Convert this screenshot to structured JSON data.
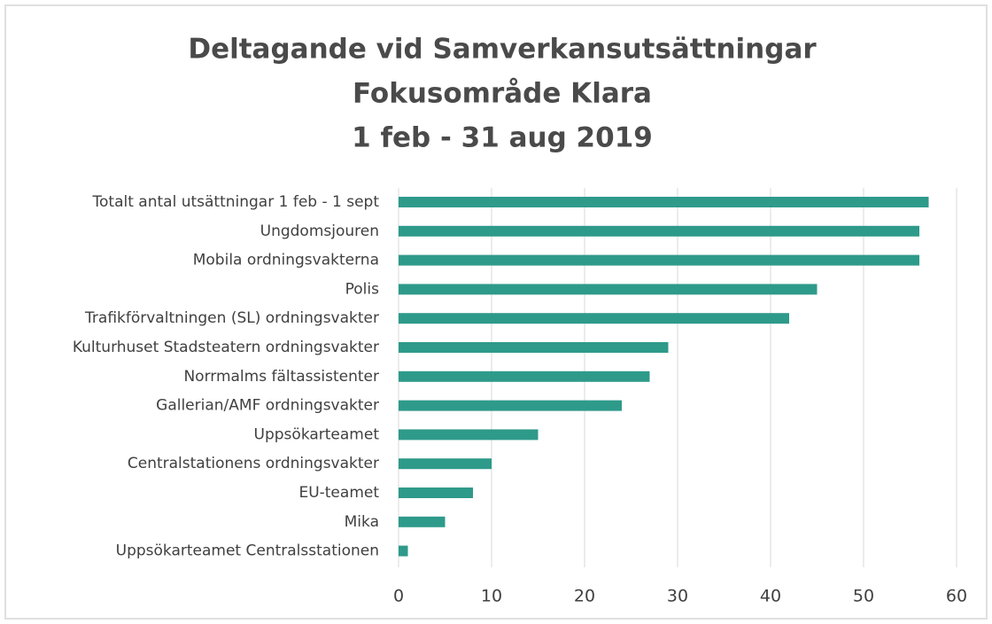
{
  "chart_data": {
    "type": "barh",
    "title": [
      "Deltagande vid Samverkansutsättningar",
      "Fokusområde Klara",
      "1 feb - 31 aug 2019"
    ],
    "categories": [
      "Totalt antal utsättningar 1 feb - 1 sept",
      "Ungdomsjouren",
      "Mobila ordningsvakterna",
      "Polis",
      "Trafikförvaltningen (SL) ordningsvakter",
      "Kulturhuset Stadsteatern ordningsvakter",
      "Norrmalms fältassistenter",
      "Gallerian/AMF ordningsvakter",
      "Uppsökarteamet",
      "Centralstationens ordningsvakter",
      "EU-teamet",
      "Mika",
      "Uppsökarteamet Centralsstationen"
    ],
    "values": [
      57,
      56,
      56,
      45,
      42,
      29,
      27,
      24,
      15,
      10,
      8,
      5,
      1
    ],
    "color": "#2e9a8a",
    "xlim": [
      0,
      60
    ],
    "xticks": [
      0,
      10,
      20,
      30,
      40,
      50,
      60
    ],
    "grid": true
  }
}
